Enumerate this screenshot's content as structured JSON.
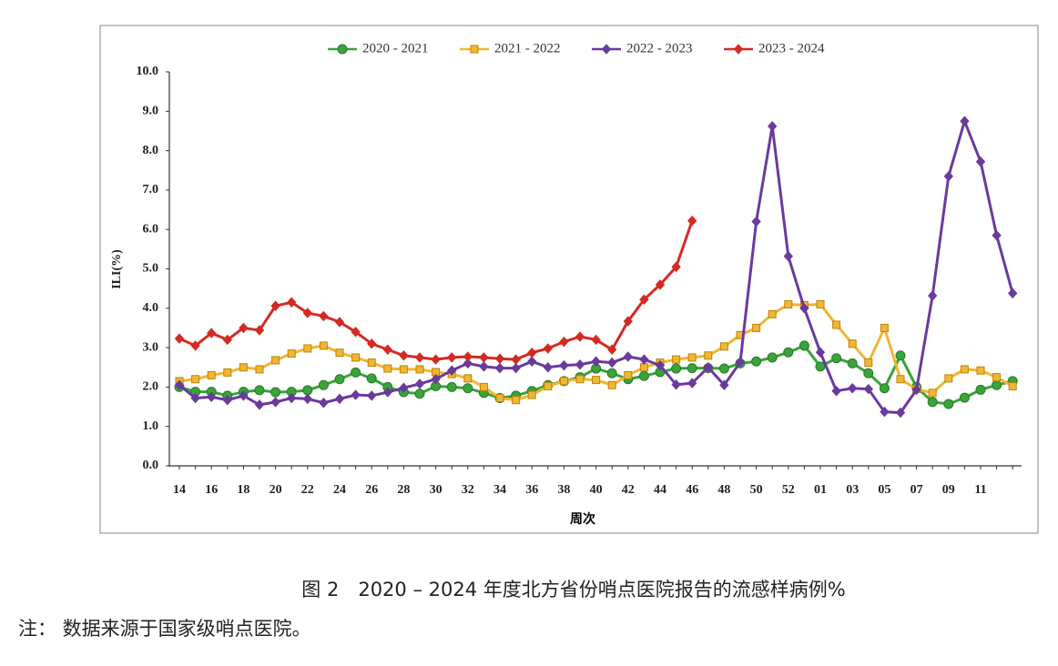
{
  "chart_data": {
    "type": "line",
    "x_label": "周次",
    "y_label": "ILI(%)",
    "caption": "图 2　2020 – 2024 年度北方省份哨点医院报告的流感样病例%",
    "note": "注： 数据来源于国家级哨点医院。",
    "categories": [
      "14",
      null,
      "16",
      null,
      "18",
      null,
      "20",
      null,
      "22",
      null,
      "24",
      null,
      "26",
      null,
      "28",
      null,
      "30",
      null,
      "32",
      null,
      "34",
      null,
      "36",
      null,
      "38",
      null,
      "40",
      null,
      "42",
      null,
      "44",
      null,
      "46",
      null,
      "48",
      null,
      "50",
      null,
      "52",
      null,
      "01",
      null,
      "03",
      null,
      "05",
      null,
      "07",
      null,
      "09",
      null,
      "11",
      null,
      null
    ],
    "ylim": [
      0,
      10
    ],
    "yticks": [
      {
        "value": 0,
        "label": "0.0"
      },
      {
        "value": 1,
        "label": "1.0"
      },
      {
        "value": 2,
        "label": "2.0"
      },
      {
        "value": 3,
        "label": "3.0"
      },
      {
        "value": 4,
        "label": "4.0"
      },
      {
        "value": 5,
        "label": "5.0"
      },
      {
        "value": 6,
        "label": "6.0"
      },
      {
        "value": 7,
        "label": "7.0"
      },
      {
        "value": 8,
        "label": "8.0"
      },
      {
        "value": 9,
        "label": "9.0"
      },
      {
        "value": 10,
        "label": "10.0"
      }
    ],
    "legend": "top",
    "series": [
      {
        "name": "2020 - 2021",
        "color": "#3aa33a",
        "marker": "circle",
        "values": [
          2.0,
          1.88,
          1.88,
          1.78,
          1.88,
          1.92,
          1.87,
          1.88,
          1.92,
          2.05,
          2.2,
          2.37,
          2.22,
          2.0,
          1.87,
          1.83,
          2.02,
          2.0,
          1.97,
          1.85,
          1.72,
          1.78,
          1.9,
          2.05,
          2.15,
          2.25,
          2.47,
          2.35,
          2.2,
          2.28,
          2.38,
          2.47,
          2.48,
          2.48,
          2.47,
          2.6,
          2.65,
          2.75,
          2.88,
          3.05,
          2.52,
          2.73,
          2.6,
          2.35,
          1.97,
          2.8,
          2.0,
          1.62,
          1.57,
          1.73,
          1.93,
          2.05,
          2.15
        ]
      },
      {
        "name": "2021 - 2022",
        "color": "#f2b632",
        "marker": "square",
        "values": [
          2.15,
          2.2,
          2.3,
          2.37,
          2.5,
          2.45,
          2.68,
          2.85,
          2.98,
          3.05,
          2.87,
          2.75,
          2.62,
          2.47,
          2.45,
          2.45,
          2.38,
          2.33,
          2.22,
          2.0,
          1.72,
          1.67,
          1.8,
          2.02,
          2.15,
          2.2,
          2.18,
          2.05,
          2.3,
          2.5,
          2.62,
          2.7,
          2.75,
          2.8,
          3.03,
          3.32,
          3.5,
          3.85,
          4.1,
          4.08,
          4.1,
          3.58,
          3.1,
          2.62,
          3.5,
          2.2,
          1.95,
          1.85,
          2.22,
          2.45,
          2.42,
          2.25,
          2.02
        ]
      },
      {
        "name": "2022 - 2023",
        "color": "#6a3a9e",
        "marker": "diamond",
        "values": [
          2.05,
          1.72,
          1.75,
          1.67,
          1.78,
          1.55,
          1.62,
          1.72,
          1.7,
          1.6,
          1.7,
          1.8,
          1.78,
          1.87,
          1.98,
          2.08,
          2.2,
          2.42,
          2.6,
          2.52,
          2.48,
          2.48,
          2.65,
          2.5,
          2.55,
          2.57,
          2.65,
          2.62,
          2.77,
          2.7,
          2.55,
          2.06,
          2.1,
          2.5,
          2.05,
          2.63,
          6.2,
          8.62,
          5.32,
          4.0,
          2.88,
          1.9,
          1.97,
          1.95,
          1.37,
          1.35,
          1.93,
          4.32,
          7.35,
          8.75,
          7.72,
          5.85,
          4.38
        ]
      },
      {
        "name": "2023 - 2024",
        "color": "#d42a22",
        "marker": "diamond",
        "values": [
          3.23,
          3.05,
          3.37,
          3.2,
          3.5,
          3.44,
          4.06,
          4.15,
          3.88,
          3.8,
          3.65,
          3.4,
          3.1,
          2.95,
          2.8,
          2.75,
          2.7,
          2.75,
          2.77,
          2.75,
          2.72,
          2.7,
          2.87,
          2.98,
          3.15,
          3.28,
          3.2,
          2.95,
          3.67,
          4.22,
          4.6,
          5.05,
          6.22,
          null,
          null,
          null,
          null,
          null,
          null,
          null,
          null,
          null,
          null,
          null,
          null,
          null,
          null,
          null,
          null,
          null,
          null,
          null,
          null
        ]
      }
    ]
  }
}
